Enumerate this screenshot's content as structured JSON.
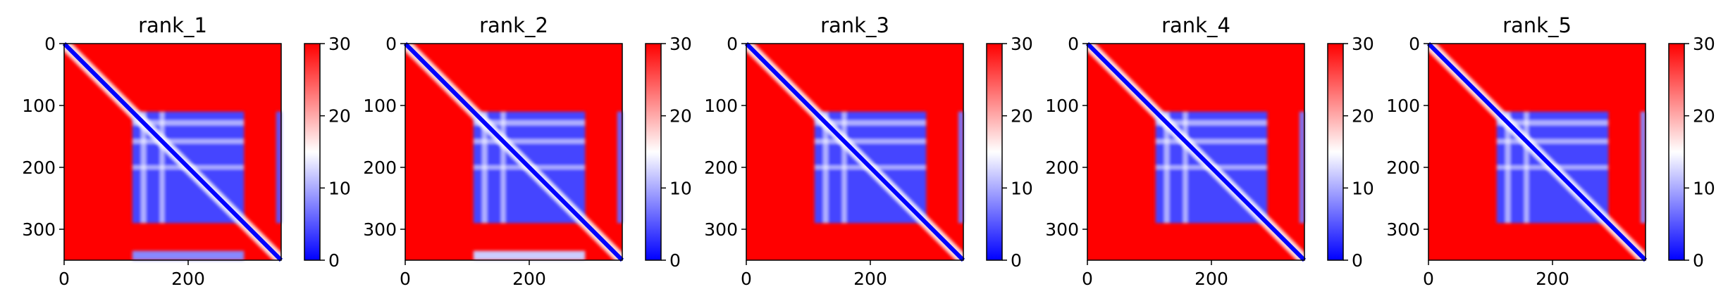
{
  "colors": {
    "low": "#0000ff",
    "mid": "#ffffff",
    "high": "#ff0000"
  },
  "chart_data": [
    {
      "type": "heatmap",
      "title": "rank_1",
      "size": 350,
      "x_ticks": [
        0,
        200
      ],
      "y_ticks": [
        0,
        100,
        200,
        300
      ],
      "colorbar": {
        "range": [
          0,
          30
        ],
        "ticks": [
          0,
          10,
          20,
          30
        ],
        "colormap": "bwr"
      },
      "blocks": [
        {
          "x": [
            110,
            290
          ],
          "y": [
            110,
            290
          ],
          "value": 4
        },
        {
          "x": [
            342,
            350
          ],
          "y": [
            110,
            290
          ],
          "value": 5
        },
        {
          "x": [
            110,
            290
          ],
          "y": [
            335,
            350
          ],
          "value": 8
        }
      ],
      "gaps": [
        {
          "axis": "x",
          "at": 128,
          "width": 8
        },
        {
          "axis": "x",
          "at": 158,
          "width": 7
        },
        {
          "axis": "y",
          "at": 128,
          "width": 8
        },
        {
          "axis": "y",
          "at": 158,
          "width": 7
        },
        {
          "axis": "y",
          "at": 200,
          "width": 6
        }
      ]
    },
    {
      "type": "heatmap",
      "title": "rank_2",
      "size": 350,
      "x_ticks": [
        0,
        200
      ],
      "y_ticks": [
        0,
        100,
        200,
        300
      ],
      "colorbar": {
        "range": [
          0,
          30
        ],
        "ticks": [
          0,
          10,
          20,
          30
        ],
        "colormap": "bwr"
      },
      "blocks": [
        {
          "x": [
            110,
            290
          ],
          "y": [
            110,
            290
          ],
          "value": 4
        },
        {
          "x": [
            342,
            350
          ],
          "y": [
            110,
            290
          ],
          "value": 6
        },
        {
          "x": [
            110,
            290
          ],
          "y": [
            335,
            350
          ],
          "value": 12
        }
      ],
      "gaps": [
        {
          "axis": "x",
          "at": 128,
          "width": 8
        },
        {
          "axis": "x",
          "at": 158,
          "width": 7
        },
        {
          "axis": "y",
          "at": 128,
          "width": 8
        },
        {
          "axis": "y",
          "at": 158,
          "width": 7
        },
        {
          "axis": "y",
          "at": 200,
          "width": 6
        }
      ]
    },
    {
      "type": "heatmap",
      "title": "rank_3",
      "size": 350,
      "x_ticks": [
        0,
        200
      ],
      "y_ticks": [
        0,
        100,
        200,
        300
      ],
      "colorbar": {
        "range": [
          0,
          30
        ],
        "ticks": [
          0,
          10,
          20,
          30
        ],
        "colormap": "bwr"
      },
      "blocks": [
        {
          "x": [
            110,
            290
          ],
          "y": [
            110,
            290
          ],
          "value": 4
        },
        {
          "x": [
            342,
            350
          ],
          "y": [
            110,
            290
          ],
          "value": 7
        }
      ],
      "gaps": [
        {
          "axis": "x",
          "at": 128,
          "width": 8
        },
        {
          "axis": "x",
          "at": 158,
          "width": 7
        },
        {
          "axis": "y",
          "at": 128,
          "width": 8
        },
        {
          "axis": "y",
          "at": 158,
          "width": 7
        },
        {
          "axis": "y",
          "at": 200,
          "width": 6
        }
      ]
    },
    {
      "type": "heatmap",
      "title": "rank_4",
      "size": 350,
      "x_ticks": [
        0,
        200
      ],
      "y_ticks": [
        0,
        100,
        200,
        300
      ],
      "colorbar": {
        "range": [
          0,
          30
        ],
        "ticks": [
          0,
          10,
          20,
          30
        ],
        "colormap": "bwr"
      },
      "blocks": [
        {
          "x": [
            110,
            290
          ],
          "y": [
            110,
            290
          ],
          "value": 4
        },
        {
          "x": [
            342,
            350
          ],
          "y": [
            110,
            290
          ],
          "value": 7
        }
      ],
      "gaps": [
        {
          "axis": "x",
          "at": 128,
          "width": 8
        },
        {
          "axis": "x",
          "at": 158,
          "width": 7
        },
        {
          "axis": "y",
          "at": 128,
          "width": 8
        },
        {
          "axis": "y",
          "at": 158,
          "width": 7
        },
        {
          "axis": "y",
          "at": 200,
          "width": 6
        }
      ]
    },
    {
      "type": "heatmap",
      "title": "rank_5",
      "size": 350,
      "x_ticks": [
        0,
        200
      ],
      "y_ticks": [
        0,
        100,
        200,
        300
      ],
      "colorbar": {
        "range": [
          0,
          30
        ],
        "ticks": [
          0,
          10,
          20,
          30
        ],
        "colormap": "bwr"
      },
      "blocks": [
        {
          "x": [
            110,
            290
          ],
          "y": [
            110,
            290
          ],
          "value": 4
        },
        {
          "x": [
            342,
            350
          ],
          "y": [
            110,
            290
          ],
          "value": 8
        }
      ],
      "gaps": [
        {
          "axis": "x",
          "at": 128,
          "width": 8
        },
        {
          "axis": "x",
          "at": 158,
          "width": 7
        },
        {
          "axis": "y",
          "at": 128,
          "width": 8
        },
        {
          "axis": "y",
          "at": 158,
          "width": 7
        },
        {
          "axis": "y",
          "at": 200,
          "width": 6
        }
      ]
    }
  ]
}
